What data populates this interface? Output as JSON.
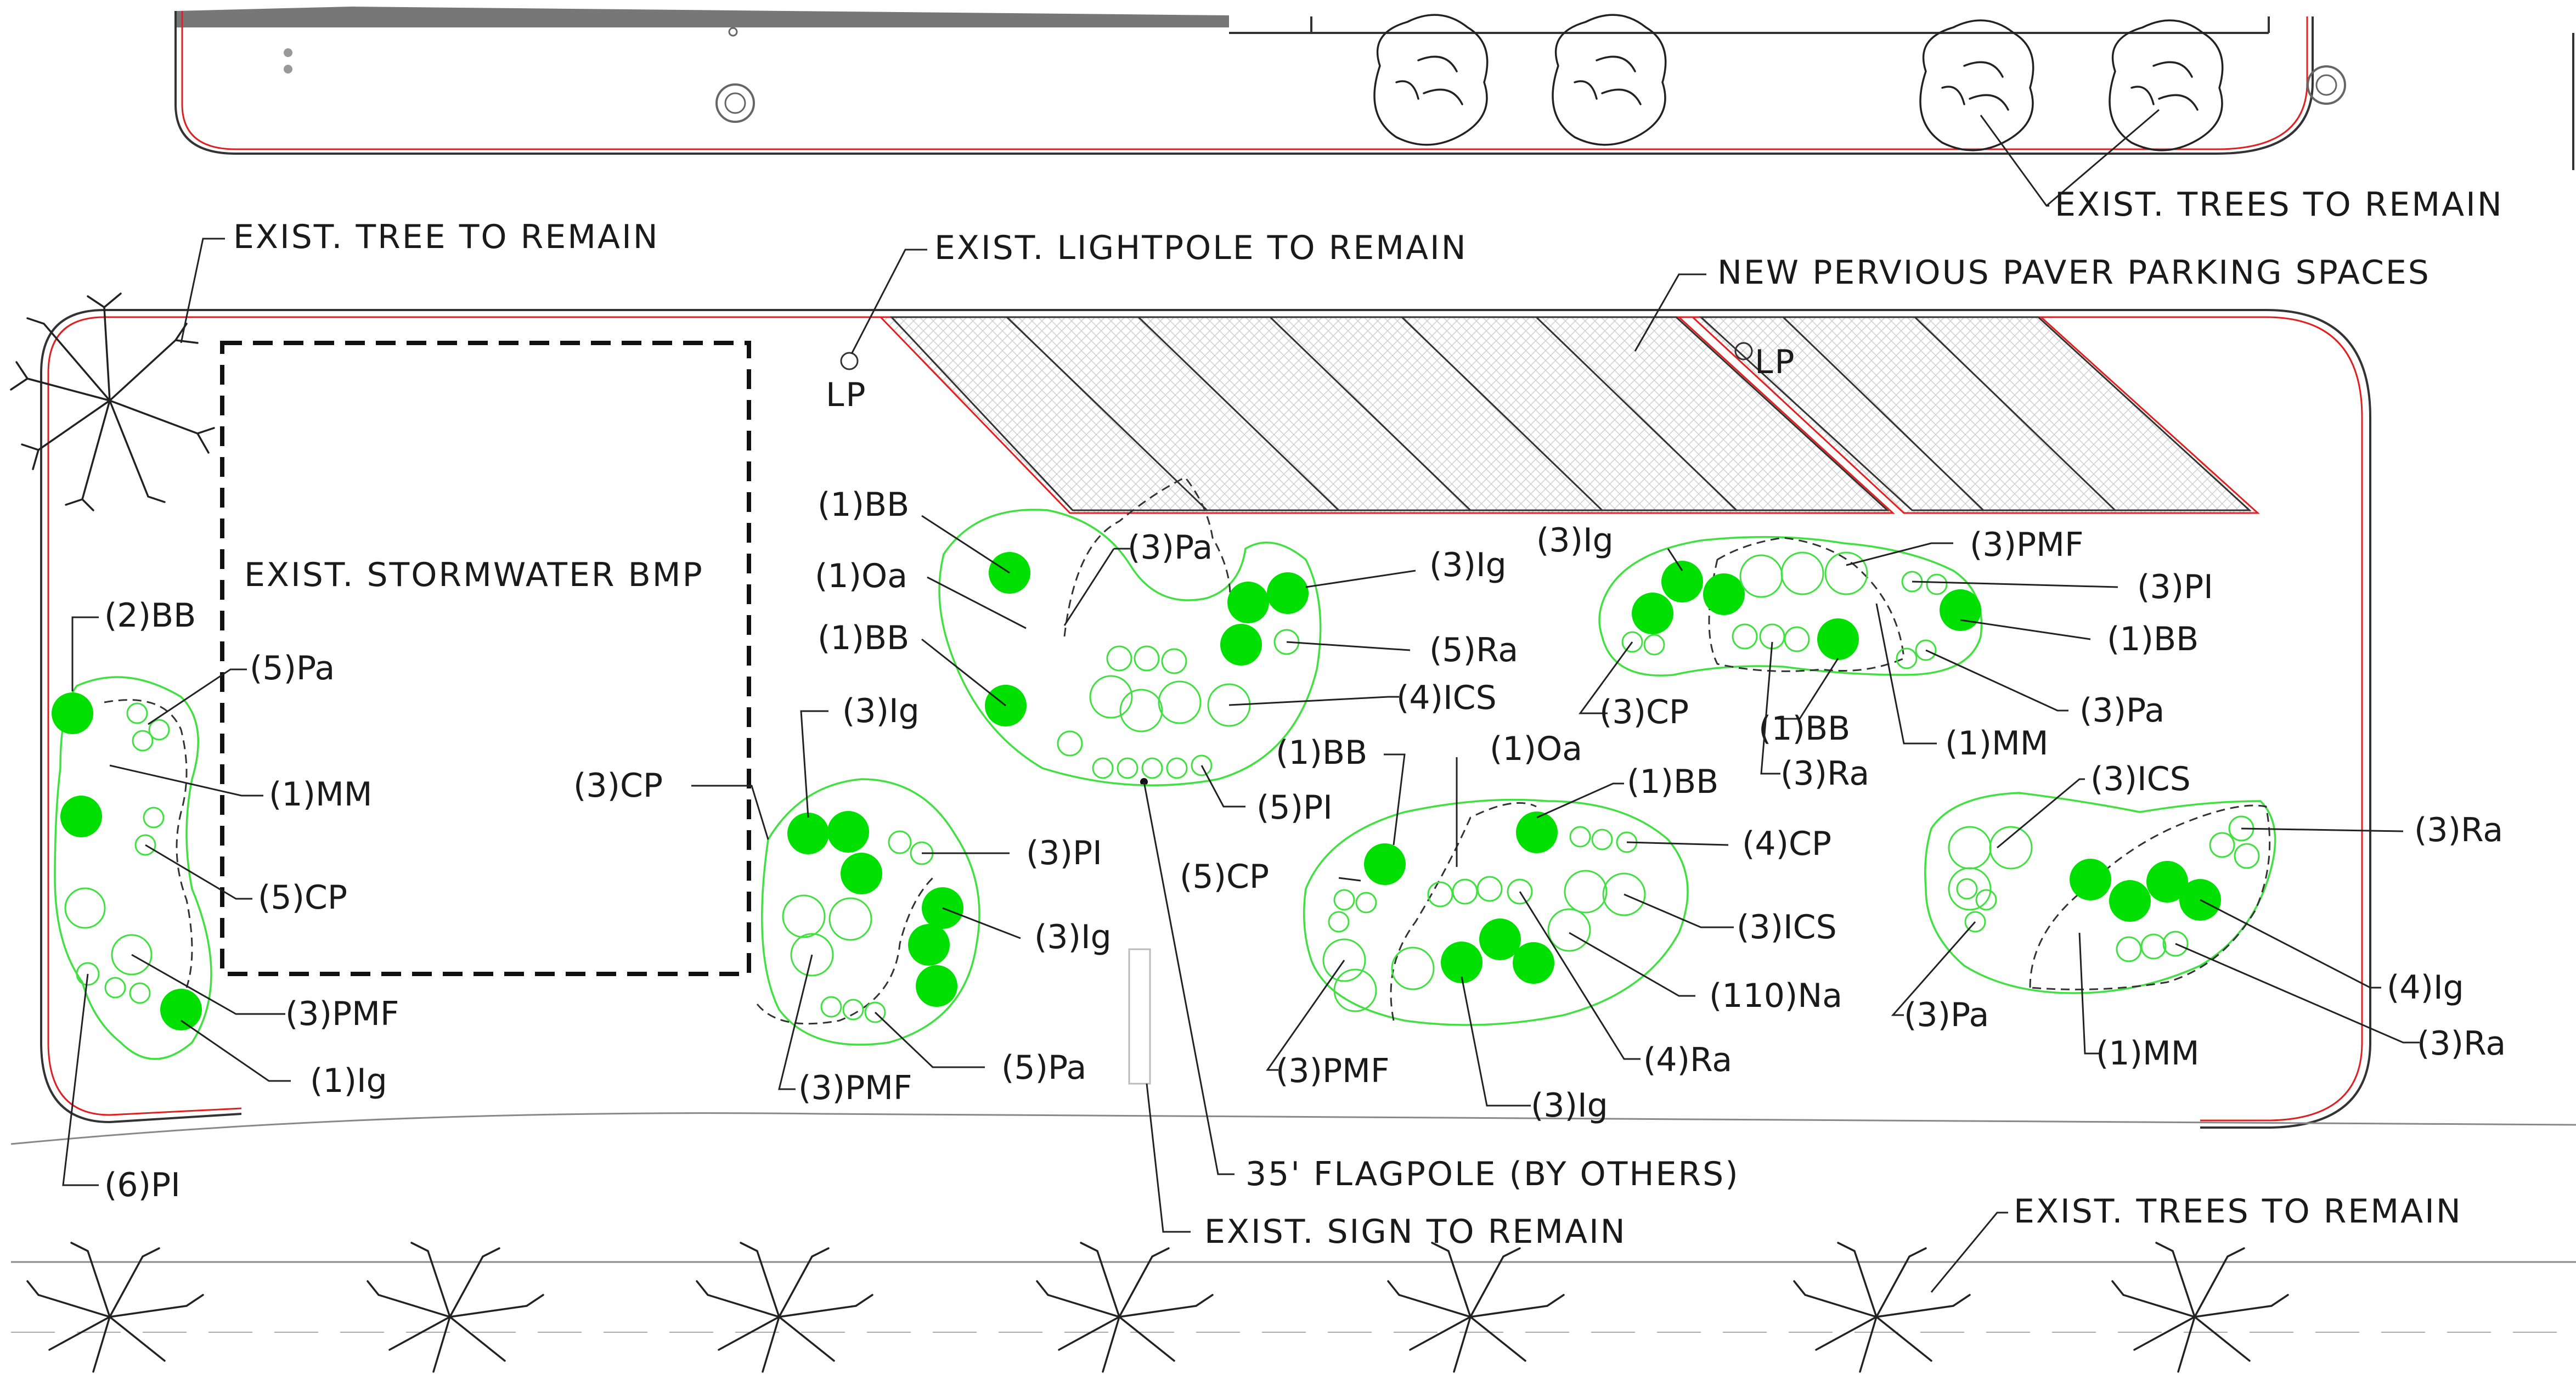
{
  "colors": {
    "plant_green": "#00e000",
    "bed_outline": "#40e040",
    "property_line": "#e02020",
    "linework": "#222222"
  },
  "callouts": {
    "tree_top_left": "EXIST. TREE TO REMAIN",
    "lightpole": "EXIST. LIGHTPOLE TO REMAIN",
    "pavers": "NEW PERVIOUS PAVER PARKING SPACES",
    "trees_top_right": "EXIST. TREES TO REMAIN",
    "stormwater": "EXIST. STORMWATER BMP",
    "flagpole": "35' FLAGPOLE (BY OTHERS)",
    "sign": "EXIST. SIGN TO REMAIN",
    "trees_bottom": "EXIST. TREES TO REMAIN",
    "lp1": "LP",
    "lp2": "LP"
  },
  "plant_labels": {
    "bed1": [
      "(2)BB",
      "(5)Pa",
      "(1)MM",
      "(5)CP",
      "(3)PMF",
      "(1)Ig",
      "(6)PI"
    ],
    "bed2": [
      "(3)CP",
      "(3)Ig",
      "(3)PI",
      "(3)Ig",
      "(5)Pa",
      "(3)PMF"
    ],
    "bed3": [
      "(1)BB",
      "(1)Oa",
      "(1)BB",
      "(3)Pa",
      "(3)Ig",
      "(5)Ra",
      "(4)ICS",
      "(5)PI"
    ],
    "bed4": [
      "(1)BB",
      "(1)Oa",
      "(1)BB",
      "(4)CP",
      "(5)CP",
      "(3)ICS",
      "(110)Na",
      "(3)PMF",
      "(4)Ra",
      "(3)Ig"
    ],
    "bed5": [
      "(3)Ig",
      "(3)PMF",
      "(3)PI",
      "(1)BB",
      "(3)CP",
      "(3)Pa",
      "(1)BB",
      "(3)Ra",
      "(1)MM"
    ],
    "bed6": [
      "(3)ICS",
      "(3)Ra",
      "(4)Ig",
      "(3)Ra",
      "(3)Pa",
      "(1)MM"
    ]
  }
}
